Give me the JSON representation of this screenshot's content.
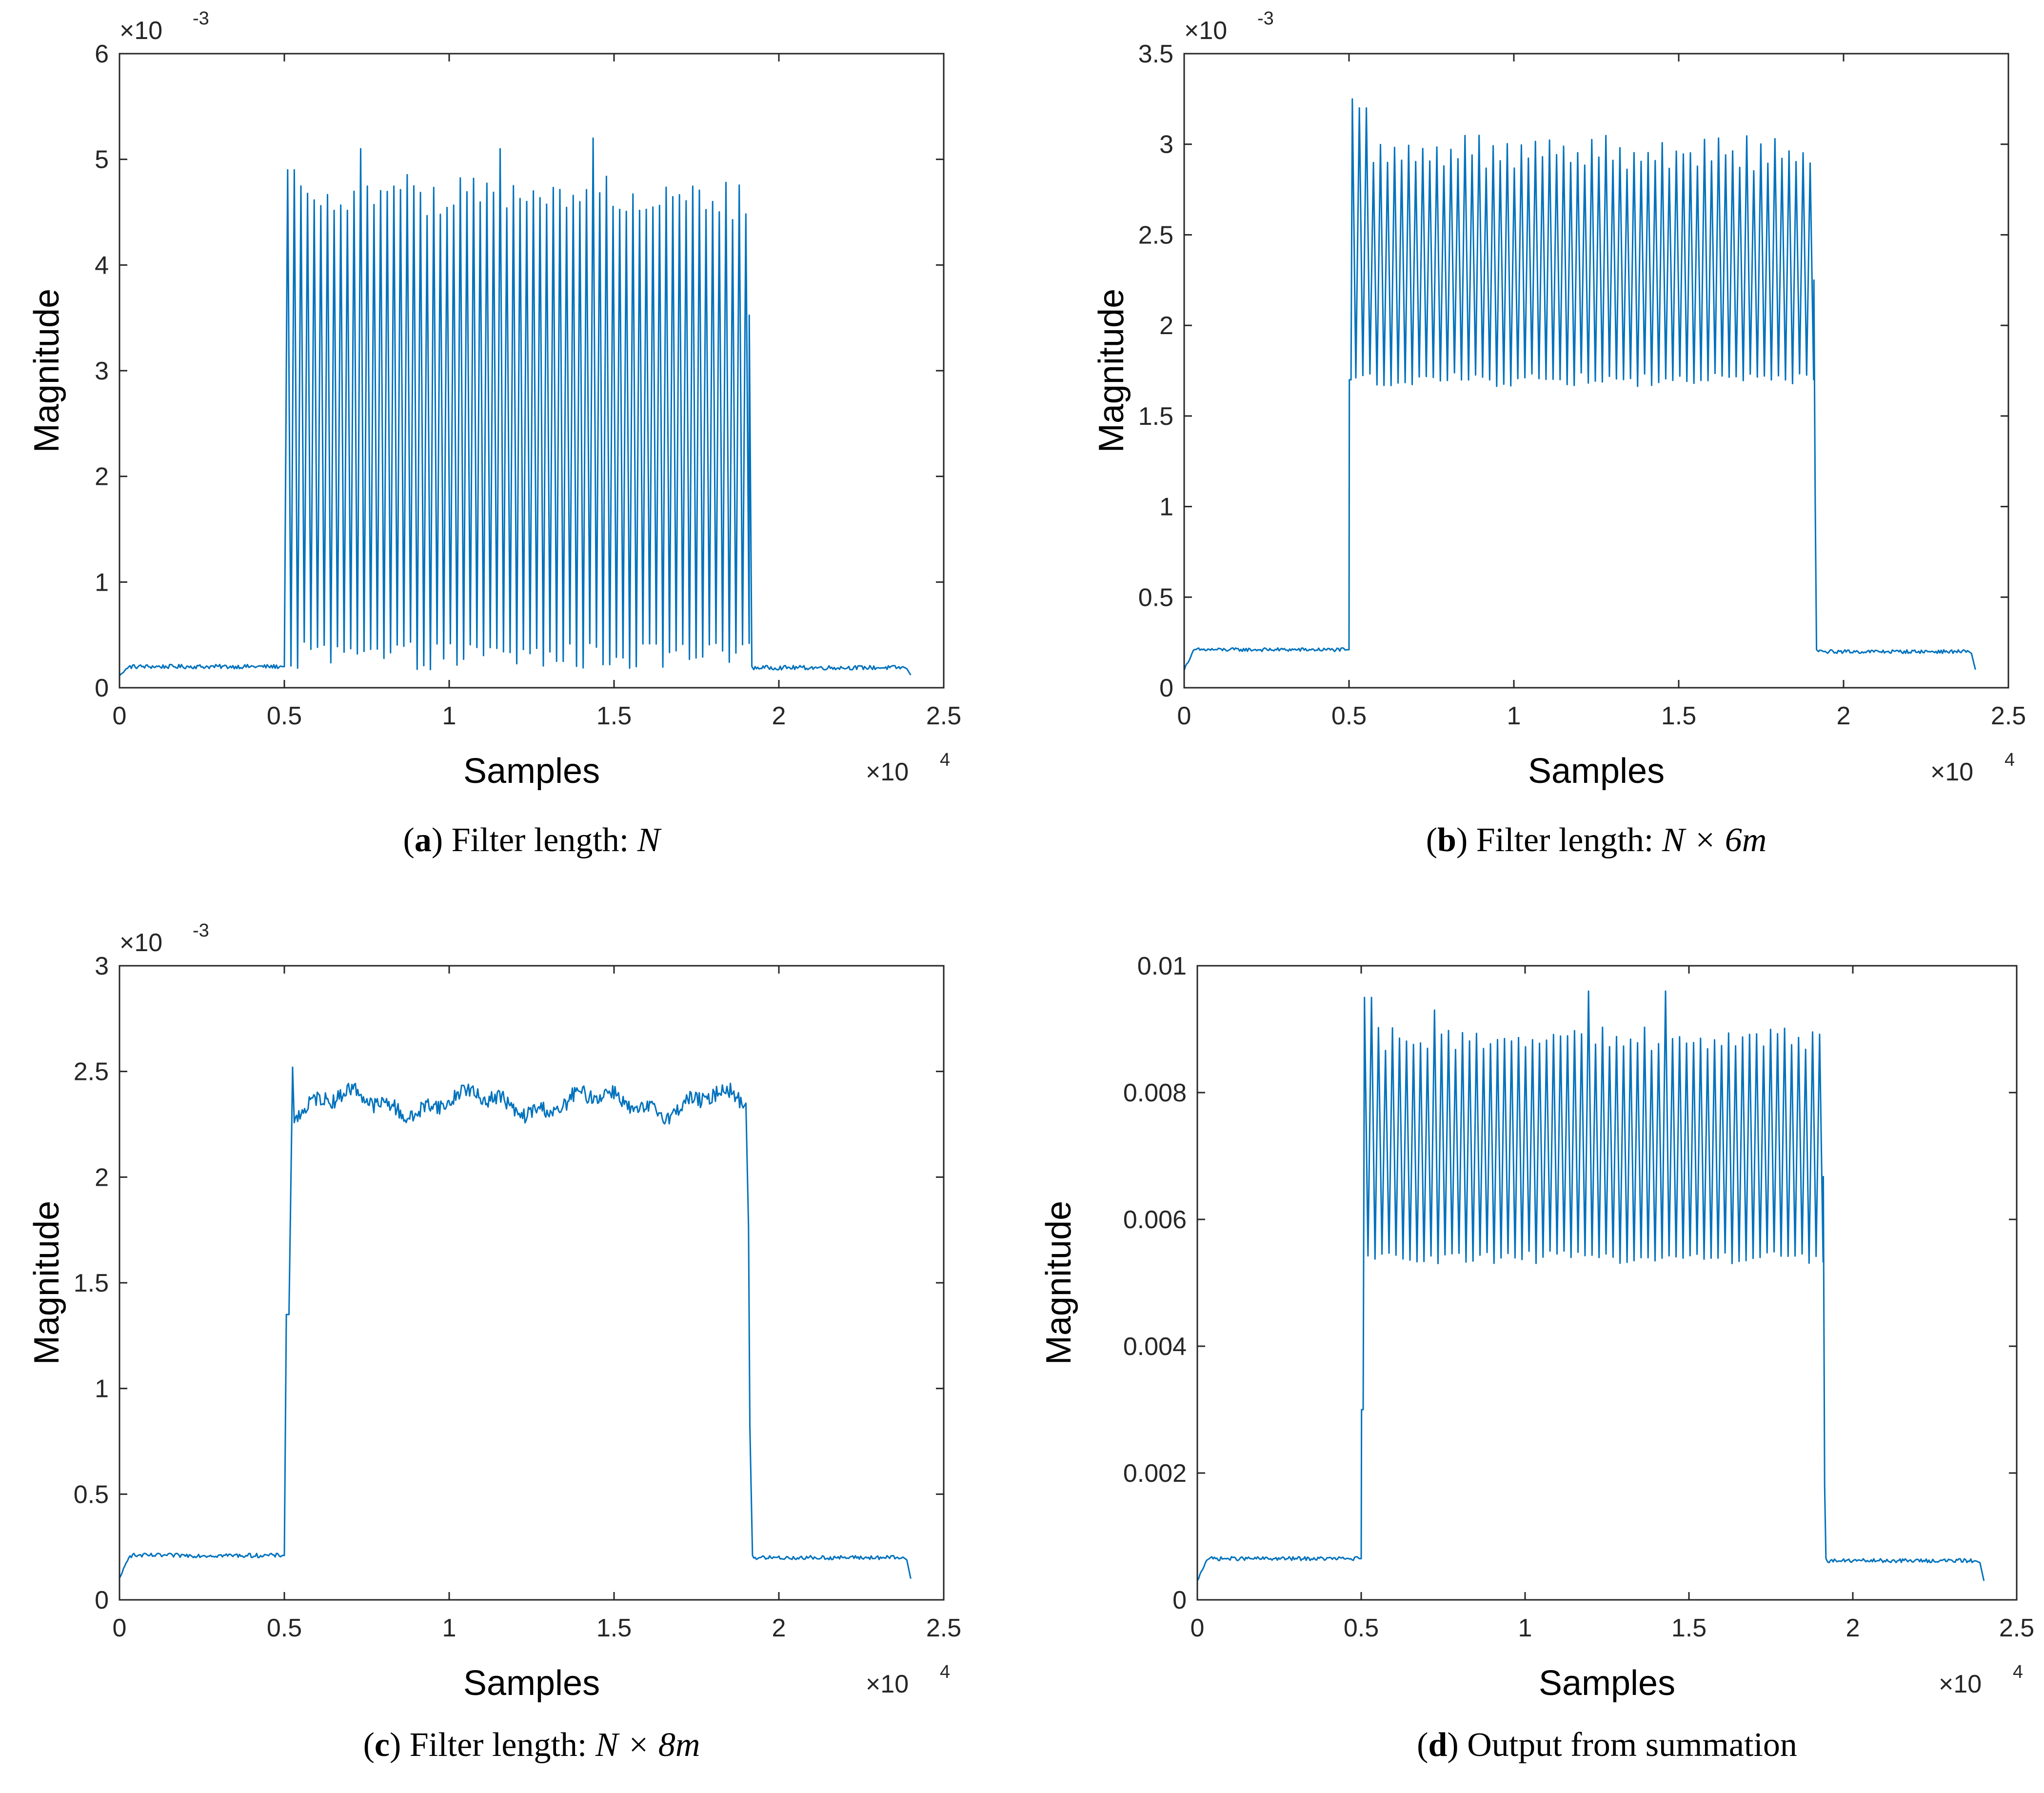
{
  "figure": {
    "panels": [
      {
        "caption": {
          "letter": "a",
          "open": "(",
          "close": ")",
          "prefix": " Filter length: ",
          "math": "N"
        },
        "chart_data": {
          "type": "line",
          "xlabel": "Samples",
          "ylabel": "Magnitude",
          "xlim": [
            0,
            25000
          ],
          "ylim": [
            0,
            0.006
          ],
          "x_ticks": [
            0,
            5000,
            10000,
            15000,
            20000,
            25000
          ],
          "x_tick_labels": [
            "0",
            "0.5",
            "1",
            "1.5",
            "2",
            "2.5"
          ],
          "x_exponent": {
            "base": "×10",
            "power": "4"
          },
          "y_ticks": [
            0,
            0.001,
            0.002,
            0.003,
            0.004,
            0.005,
            0.006
          ],
          "y_tick_labels": [
            "0",
            "1",
            "2",
            "3",
            "4",
            "5",
            "6"
          ],
          "y_exponent": {
            "base": "×10",
            "power": "-3"
          },
          "grid": false,
          "series": [
            {
              "color": "#0072BD",
              "x_range": [
                0,
                24000
              ],
              "baseline": 0.0002,
              "signal_start": 5000,
              "signal_end": 19100,
              "num_peaks": 70,
              "peak_levels": [
                0.0047,
                0.0046
              ],
              "trough_level": 0.0003,
              "peak_spikes": [
                {
                  "x": 5200,
                  "y": 0.0049
                },
                {
                  "x": 7300,
                  "y": 0.0051
                },
                {
                  "x": 11500,
                  "y": 0.0051
                },
                {
                  "x": 14300,
                  "y": 0.0052
                }
              ],
              "edge_start": 5000,
              "edge_end": 19100,
              "pulse_value": 0.0002,
              "noise": 2e-05,
              "end_value": 0.00012
            }
          ]
        }
      },
      {
        "caption": {
          "letter": "b",
          "open": "(",
          "close": ")",
          "prefix": " Filter length: ",
          "math": "N × 6m"
        },
        "chart_data": {
          "type": "line",
          "xlabel": "Samples",
          "ylabel": "Magnitude",
          "xlim": [
            0,
            25000
          ],
          "ylim": [
            0,
            0.0035
          ],
          "x_ticks": [
            0,
            5000,
            10000,
            15000,
            20000,
            25000
          ],
          "x_tick_labels": [
            "0",
            "0.5",
            "1",
            "1.5",
            "2",
            "2.5"
          ],
          "x_exponent": {
            "base": "×10",
            "power": "4"
          },
          "y_ticks": [
            0,
            0.0005,
            0.001,
            0.0015,
            0.002,
            0.0025,
            0.003,
            0.0035
          ],
          "y_tick_labels": [
            "0",
            "0.5",
            "1",
            "1.5",
            "2",
            "2.5",
            "3",
            "3.5"
          ],
          "y_exponent": {
            "base": "×10",
            "power": "-3"
          },
          "grid": false,
          "series": [
            {
              "color": "#0072BD",
              "x_range": [
                0,
                24000
              ],
              "baseline": 0.00021,
              "signal_start": 5000,
              "signal_end": 19100,
              "num_peaks": 66,
              "peak_levels": [
                0.003,
                0.0029
              ],
              "trough_level": 0.0017,
              "peak_spikes": [
                {
                  "x": 5200,
                  "y": 0.00325
                },
                {
                  "x": 5400,
                  "y": 0.0032
                }
              ],
              "edge_start": 5000,
              "edge_end": 19100,
              "pulse_value": 0.0017,
              "noise": 1e-05,
              "end_value": 0.0001
            }
          ]
        }
      },
      {
        "caption": {
          "letter": "c",
          "open": "(",
          "close": ")",
          "prefix": " Filter length: ",
          "math": "N × 8m"
        },
        "chart_data": {
          "type": "line",
          "xlabel": "Samples",
          "ylabel": "Magnitude",
          "xlim": [
            0,
            25000
          ],
          "ylim": [
            0,
            0.003
          ],
          "x_ticks": [
            0,
            5000,
            10000,
            15000,
            20000,
            25000
          ],
          "x_tick_labels": [
            "0",
            "0.5",
            "1",
            "1.5",
            "2",
            "2.5"
          ],
          "x_exponent": {
            "base": "×10",
            "power": "4"
          },
          "y_ticks": [
            0,
            0.0005,
            0.001,
            0.0015,
            0.002,
            0.0025,
            0.003
          ],
          "y_tick_labels": [
            "0",
            "0.5",
            "1",
            "1.5",
            "2",
            "2.5",
            "3"
          ],
          "y_exponent": {
            "base": "×10",
            "power": "-3"
          },
          "grid": false,
          "series": [
            {
              "color": "#0072BD",
              "x_range": [
                0,
                24000
              ],
              "baseline": 0.00021,
              "signal_start": 5000,
              "signal_end": 19100,
              "plateau": 0.00235,
              "plateau_peak": 0.00252,
              "plateau_wobble": 8e-05,
              "edge_start": 5000,
              "edge_end": 19100,
              "pulse_value": 0.00135,
              "noise": 1e-05,
              "end_value": 0.0001
            }
          ]
        }
      },
      {
        "caption": {
          "letter": "d",
          "open": "(",
          "close": ")",
          "prefix": " Output from summation",
          "math": ""
        },
        "chart_data": {
          "type": "line",
          "xlabel": "Samples",
          "ylabel": "Magnitude",
          "xlim": [
            0,
            25000
          ],
          "ylim": [
            0,
            0.01
          ],
          "x_ticks": [
            0,
            5000,
            10000,
            15000,
            20000,
            25000
          ],
          "x_tick_labels": [
            "0",
            "0.5",
            "1",
            "1.5",
            "2",
            "2.5"
          ],
          "x_exponent": {
            "base": "×10",
            "power": "4"
          },
          "y_ticks": [
            0,
            0.002,
            0.004,
            0.006,
            0.008,
            0.01
          ],
          "y_tick_labels": [
            "0",
            "0.002",
            "0.004",
            "0.006",
            "0.008",
            "0.01"
          ],
          "y_exponent": null,
          "grid": false,
          "series": [
            {
              "color": "#0072BD",
              "x_range": [
                0,
                24000
              ],
              "baseline": 0.00065,
              "signal_start": 5000,
              "signal_end": 19100,
              "num_peaks": 66,
              "peak_levels": [
                0.0089,
                0.0088
              ],
              "trough_level": 0.0054,
              "peak_spikes": [
                {
                  "x": 5200,
                  "y": 0.0095
                },
                {
                  "x": 7200,
                  "y": 0.0093
                },
                {
                  "x": 11900,
                  "y": 0.0096
                },
                {
                  "x": 14300,
                  "y": 0.0096
                }
              ],
              "edge_start": 5000,
              "edge_end": 19100,
              "pulse_value": 0.003,
              "noise": 3e-05,
              "end_value": 0.0003
            }
          ]
        }
      }
    ]
  }
}
